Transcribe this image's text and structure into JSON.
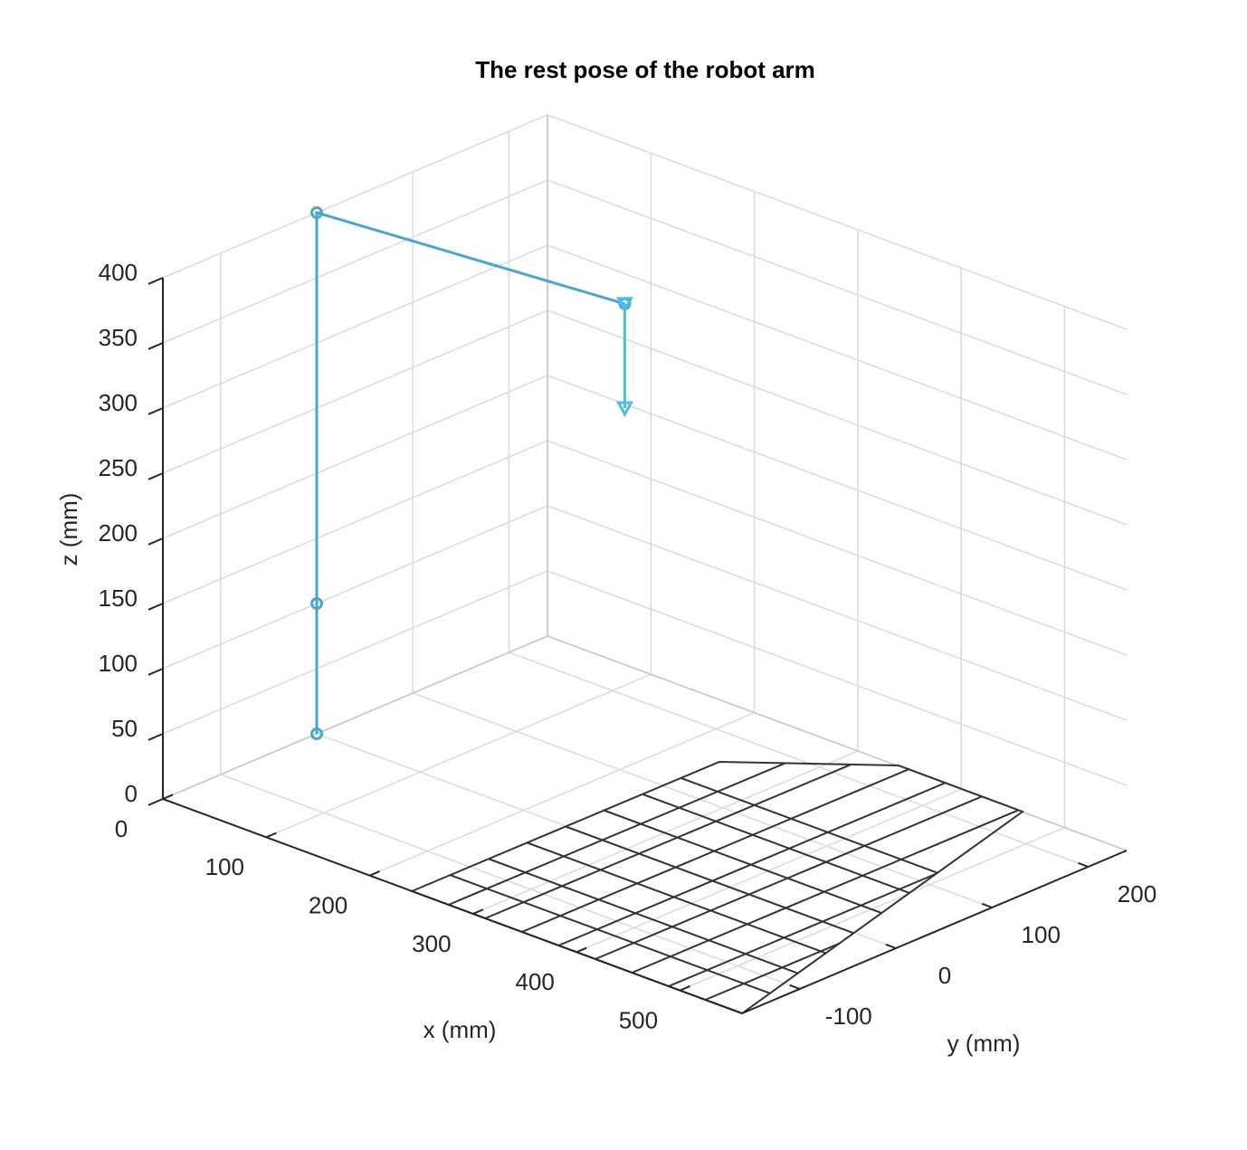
{
  "chart_data": {
    "type": "line3d",
    "title": "The rest pose of the robot arm",
    "xlabel": "x (mm)",
    "ylabel": "y (mm)",
    "zlabel": "z (mm)",
    "xlim": [
      0,
      560
    ],
    "ylim": [
      -160,
      240
    ],
    "zlim": [
      0,
      400
    ],
    "xticks": [
      0,
      100,
      200,
      300,
      400,
      500
    ],
    "yticks": [
      -100,
      0,
      100,
      200
    ],
    "zticks": [
      0,
      50,
      100,
      150,
      200,
      250,
      300,
      350,
      400
    ],
    "grid": true,
    "series": [
      {
        "color": "#4ba6c9",
        "marker": "o",
        "x": [
          0,
          0,
          0,
          270
        ],
        "y": [
          0,
          0,
          0,
          30
        ],
        "z": [
          0,
          100,
          400,
          400
        ]
      },
      {
        "color": "#4dbde6",
        "marker": "v",
        "x": [
          270,
          270
        ],
        "y": [
          30,
          30
        ],
        "z": [
          400,
          320
        ]
      }
    ]
  }
}
